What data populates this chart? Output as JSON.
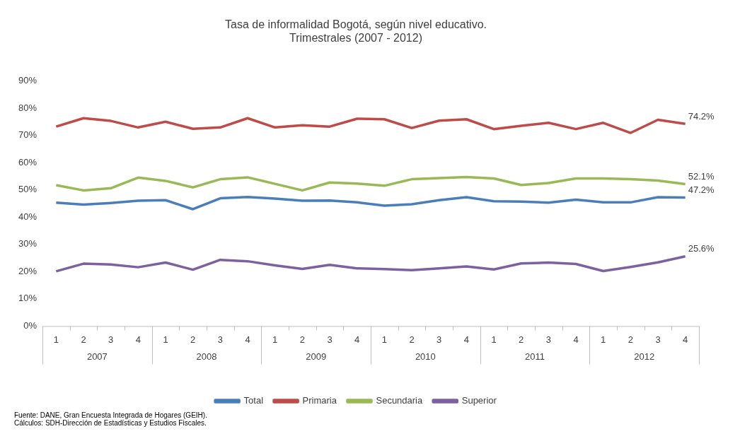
{
  "chart_data": {
    "type": "line",
    "title": "Tasa de informalidad Bogotá, según nivel educativo.",
    "subtitle": "Trimestrales (2007 - 2012)",
    "categories": [
      "1",
      "2",
      "3",
      "4",
      "1",
      "2",
      "3",
      "4",
      "1",
      "2",
      "3",
      "4",
      "1",
      "2",
      "3",
      "4",
      "1",
      "2",
      "3",
      "4",
      "1",
      "2",
      "3",
      "4"
    ],
    "annotations": [
      "2007",
      "2008",
      "2009",
      "2010",
      "2011",
      "2012",
      "Fuente: DANE, Gran Encuesta Integrada de Hogares (GEIH).",
      "Cálculos: SDH-Dirección de Estadísticas y Estudios Fiscales."
    ],
    "series": [
      {
        "name": "Total",
        "color": "#4a7ebb",
        "values": [
          45.3,
          44.6,
          45.2,
          46.0,
          46.2,
          42.9,
          46.9,
          47.4,
          46.8,
          46.0,
          46.1,
          45.4,
          44.2,
          44.7,
          46.2,
          47.3,
          45.8,
          45.7,
          45.3,
          46.4,
          45.4,
          45.4,
          47.3,
          47.2
        ],
        "value_labels": [
          null,
          null,
          null,
          null,
          null,
          null,
          null,
          null,
          null,
          null,
          null,
          null,
          null,
          null,
          null,
          null,
          null,
          null,
          null,
          null,
          null,
          null,
          null,
          "47.2%"
        ]
      },
      {
        "name": "Primaria",
        "color": "#be4b48",
        "values": [
          73.2,
          76.3,
          75.3,
          72.9,
          75.0,
          72.4,
          72.9,
          76.3,
          72.9,
          73.7,
          73.2,
          76.1,
          75.9,
          72.7,
          75.4,
          75.9,
          72.3,
          73.5,
          74.6,
          72.3,
          74.6,
          70.9,
          75.7,
          74.2
        ],
        "value_labels": [
          null,
          null,
          null,
          null,
          null,
          null,
          null,
          null,
          null,
          null,
          null,
          null,
          null,
          null,
          null,
          null,
          null,
          null,
          null,
          null,
          null,
          null,
          null,
          "74.2%"
        ]
      },
      {
        "name": "Secundaria",
        "color": "#98b954",
        "values": [
          51.7,
          49.8,
          50.6,
          54.5,
          53.3,
          50.9,
          53.9,
          54.6,
          52.2,
          49.8,
          52.7,
          52.3,
          51.5,
          53.9,
          54.3,
          54.7,
          54.2,
          51.8,
          52.5,
          54.2,
          54.2,
          53.9,
          53.4,
          52.1
        ],
        "value_labels": [
          null,
          null,
          null,
          null,
          null,
          null,
          null,
          null,
          null,
          null,
          null,
          null,
          null,
          null,
          null,
          null,
          null,
          null,
          null,
          null,
          null,
          null,
          null,
          "52.1%"
        ]
      },
      {
        "name": "Superior",
        "color": "#7d60a0",
        "values": [
          20.1,
          22.9,
          22.6,
          21.6,
          23.3,
          20.7,
          24.3,
          23.8,
          22.3,
          21.0,
          22.5,
          21.2,
          20.9,
          20.5,
          21.2,
          21.9,
          20.8,
          23.0,
          23.3,
          22.8,
          20.2,
          21.7,
          23.4,
          25.6
        ],
        "value_labels": [
          null,
          null,
          null,
          null,
          null,
          null,
          null,
          null,
          null,
          null,
          null,
          null,
          null,
          null,
          null,
          null,
          null,
          null,
          null,
          null,
          null,
          null,
          null,
          "25.6%"
        ]
      }
    ],
    "ylim": [
      0,
      90
    ],
    "yticks": [
      {
        "value": 0,
        "label": "0%"
      },
      {
        "value": 10,
        "label": "10%"
      },
      {
        "value": 20,
        "label": "20%"
      },
      {
        "value": 30,
        "label": "30%"
      },
      {
        "value": 40,
        "label": "40%"
      },
      {
        "value": 50,
        "label": "50%"
      },
      {
        "value": 60,
        "label": "60%"
      },
      {
        "value": 70,
        "label": "70%"
      },
      {
        "value": 80,
        "label": "80%"
      },
      {
        "value": 90,
        "label": "90%"
      }
    ],
    "grid": false,
    "legend": "bottom",
    "marker": "none",
    "line_style": "solid"
  }
}
